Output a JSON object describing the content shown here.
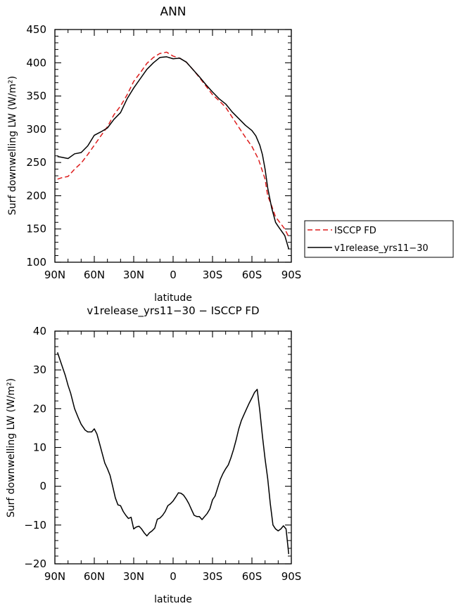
{
  "chart_data": [
    {
      "type": "line",
      "title": "ANN",
      "xlabel": "latitude",
      "ylabel": "Surf downwelling LW (W/m²)",
      "xlim": [
        -90,
        90
      ],
      "ylim": [
        100,
        450
      ],
      "xticks": [
        {
          "value": -90,
          "label": "90N"
        },
        {
          "value": -60,
          "label": "60N"
        },
        {
          "value": -30,
          "label": "30N"
        },
        {
          "value": 0,
          "label": "0"
        },
        {
          "value": 30,
          "label": "30S"
        },
        {
          "value": 60,
          "label": "60S"
        },
        {
          "value": 90,
          "label": "90S"
        }
      ],
      "yticks": [
        100,
        150,
        200,
        250,
        300,
        350,
        400,
        450
      ],
      "legend_position": "right",
      "series": [
        {
          "name": "ISCCP FD",
          "color": "#dd1c1c",
          "dash": "dashed",
          "x": [
            -88,
            -85,
            -80,
            -75,
            -70,
            -65,
            -60,
            -55,
            -50,
            -45,
            -40,
            -35,
            -30,
            -25,
            -20,
            -15,
            -10,
            -5,
            0,
            5,
            10,
            15,
            20,
            25,
            30,
            35,
            40,
            45,
            50,
            55,
            60,
            65,
            70,
            72,
            75,
            78,
            80,
            85,
            88
          ],
          "y": [
            225,
            227,
            229,
            240,
            249,
            262,
            276,
            290,
            304,
            322,
            335,
            352,
            372,
            385,
            399,
            408,
            414,
            416,
            410,
            407,
            401,
            390,
            378,
            365,
            352,
            343,
            333,
            318,
            303,
            288,
            274,
            255,
            225,
            200,
            185,
            168,
            163,
            150,
            138
          ]
        },
        {
          "name": "v1release_yrs11−30",
          "color": "#000000",
          "dash": "solid",
          "x": [
            -88,
            -85,
            -80,
            -75,
            -70,
            -65,
            -60,
            -55,
            -50,
            -45,
            -40,
            -35,
            -30,
            -25,
            -20,
            -15,
            -10,
            -5,
            0,
            5,
            10,
            15,
            20,
            25,
            30,
            35,
            40,
            45,
            50,
            55,
            60,
            63,
            66,
            68,
            70,
            72,
            75,
            78,
            80,
            85,
            88
          ],
          "y": [
            259,
            258,
            256,
            263,
            265,
            275,
            291,
            296,
            302,
            315,
            325,
            346,
            362,
            376,
            390,
            400,
            408,
            409,
            406,
            407,
            401,
            390,
            379,
            367,
            356,
            346,
            338,
            326,
            316,
            306,
            298,
            290,
            276,
            262,
            240,
            212,
            182,
            160,
            154,
            140,
            120
          ]
        }
      ]
    },
    {
      "type": "line",
      "title": "v1release_yrs11−30 − ISCCP FD",
      "xlabel": "latitude",
      "ylabel": "Surf downwelling LW (W/m²)",
      "xlim": [
        -90,
        90
      ],
      "ylim": [
        -20,
        40
      ],
      "xticks": [
        {
          "value": -90,
          "label": "90N"
        },
        {
          "value": -60,
          "label": "60N"
        },
        {
          "value": -30,
          "label": "30N"
        },
        {
          "value": 0,
          "label": "0"
        },
        {
          "value": 30,
          "label": "30S"
        },
        {
          "value": 60,
          "label": "60S"
        },
        {
          "value": 90,
          "label": "90S"
        }
      ],
      "yticks": [
        -20,
        -10,
        0,
        10,
        20,
        30,
        40
      ],
      "series": [
        {
          "color": "#000000",
          "dash": "solid",
          "x": [
            -88,
            -85,
            -82,
            -80,
            -78,
            -75,
            -72,
            -70,
            -67,
            -65,
            -62,
            -60,
            -58,
            -56,
            -54,
            -52,
            -50,
            -48,
            -46,
            -44,
            -42,
            -40,
            -38,
            -36,
            -34,
            -32,
            -30,
            -28,
            -26,
            -24,
            -22,
            -20,
            -18,
            -16,
            -14,
            -12,
            -10,
            -8,
            -6,
            -4,
            -2,
            0,
            2,
            4,
            6,
            8,
            10,
            12,
            14,
            16,
            18,
            20,
            22,
            24,
            26,
            28,
            30,
            32,
            34,
            36,
            38,
            40,
            42,
            44,
            46,
            48,
            50,
            52,
            54,
            56,
            58,
            60,
            62,
            64,
            66,
            68,
            70,
            72,
            74,
            76,
            78,
            80,
            82,
            84,
            86,
            88
          ],
          "y": [
            34.5,
            31.5,
            28.5,
            26,
            24,
            20,
            17.5,
            16,
            14.5,
            14,
            14,
            14.8,
            13.5,
            11,
            8.5,
            6,
            4.5,
            2.8,
            0,
            -3,
            -4.8,
            -5,
            -6.5,
            -7.5,
            -8.3,
            -8,
            -11,
            -10.5,
            -10.3,
            -11,
            -12,
            -12.8,
            -12,
            -11.5,
            -10.8,
            -8.5,
            -8.2,
            -7.5,
            -6.5,
            -5,
            -4.5,
            -3.8,
            -2.8,
            -1.7,
            -1.8,
            -2.3,
            -3.3,
            -4.5,
            -6,
            -7.5,
            -7.8,
            -7.8,
            -8.6,
            -7.8,
            -7,
            -5.8,
            -3.5,
            -2.5,
            -0.3,
            1.8,
            3.3,
            4.5,
            5.5,
            7.3,
            9.5,
            12,
            14.8,
            17,
            18.5,
            20,
            21.5,
            22.8,
            24.2,
            25,
            19.5,
            13,
            7,
            2,
            -4.5,
            -10,
            -11,
            -11.5,
            -11,
            -10.2,
            -11,
            -17.5
          ]
        }
      ]
    }
  ]
}
